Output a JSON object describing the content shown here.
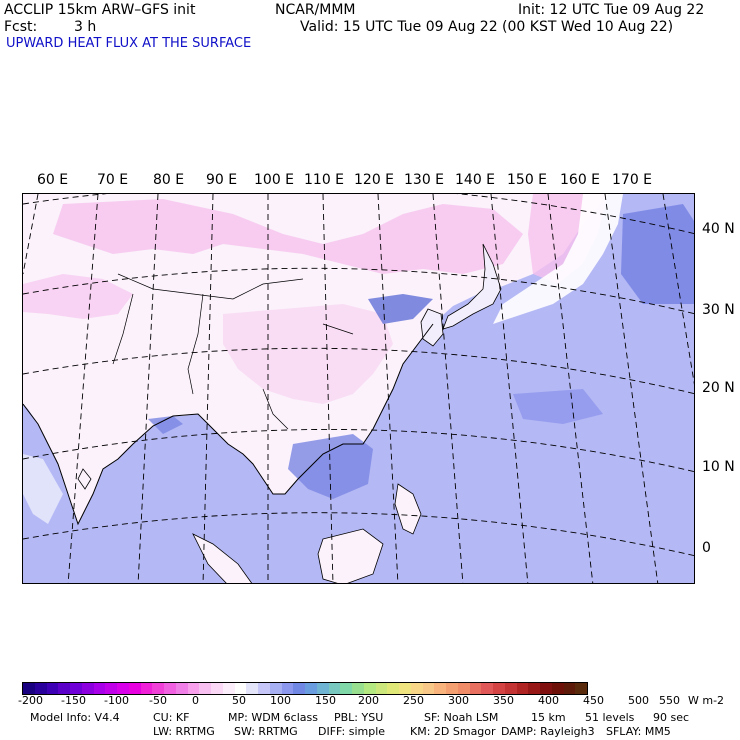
{
  "header": {
    "model": "ACCLIP 15km ARW–GFS init",
    "center": "NCAR/MMM",
    "init": "Init: 12 UTC Tue 09 Aug 22",
    "fcst_label": "Fcst:",
    "fcst_value": "3 h",
    "valid": "Valid: 15 UTC Tue 09 Aug 22 (00 KST Wed 10 Aug 22)",
    "field": "UPWARD HEAT FLUX AT THE SURFACE"
  },
  "map": {
    "lon_labels": [
      "60 E",
      "70 E",
      "80 E",
      "90 E",
      "100 E",
      "110 E",
      "120 E",
      "130 E",
      "140 E",
      "150 E",
      "160 E",
      "170 E"
    ],
    "lat_labels": [
      "40 N",
      "30 N",
      "20 N",
      "10 N",
      "0"
    ]
  },
  "colorbar": {
    "labels": [
      "-200",
      "-150",
      "-100",
      "-50",
      "0",
      "50",
      "100",
      "150",
      "200",
      "250",
      "300",
      "350",
      "400",
      "450",
      "500",
      "550"
    ],
    "units": "W m-2",
    "colors": [
      "#180080",
      "#2a009c",
      "#3e00b4",
      "#5a00c8",
      "#7000d8",
      "#8c00e0",
      "#a800e8",
      "#c000e8",
      "#d800e8",
      "#e800e0",
      "#f020d8",
      "#f040d8",
      "#f060e0",
      "#f080e8",
      "#f8a0ec",
      "#f8c0f0",
      "#fad8f6",
      "#fceefa",
      "#ffffff",
      "#e4e4fa",
      "#c6c6f8",
      "#a8b0f4",
      "#8c98ee",
      "#7088e4",
      "#6a9ce0",
      "#70b4d4",
      "#78c8c0",
      "#80d8a8",
      "#98e090",
      "#b4e880",
      "#cce87c",
      "#e0e878",
      "#f0e480",
      "#f8d888",
      "#f8c888",
      "#f8b47c",
      "#f4a070",
      "#f08c68",
      "#e87060",
      "#e05858",
      "#d44444",
      "#c43434",
      "#b02424",
      "#981818",
      "#801010",
      "#6c1008",
      "#5e1a08",
      "#5a2a0c"
    ]
  },
  "footer": {
    "line1": {
      "model_info": "Model Info: V4.4",
      "cu": "CU: KF",
      "mp": "MP: WDM 6class",
      "pbl": "PBL: YSU",
      "sf": "SF: Noah LSM",
      "res": "15 km",
      "levels": "51 levels",
      "dt": "90 sec"
    },
    "line2": {
      "lw": "LW: RRTMG",
      "sw": "SW: RRTMG",
      "diff": "DIFF: simple",
      "km": "KM: 2D Smagor",
      "damp": "DAMP: Rayleigh3",
      "sflay": "SFLAY: MM5"
    }
  }
}
